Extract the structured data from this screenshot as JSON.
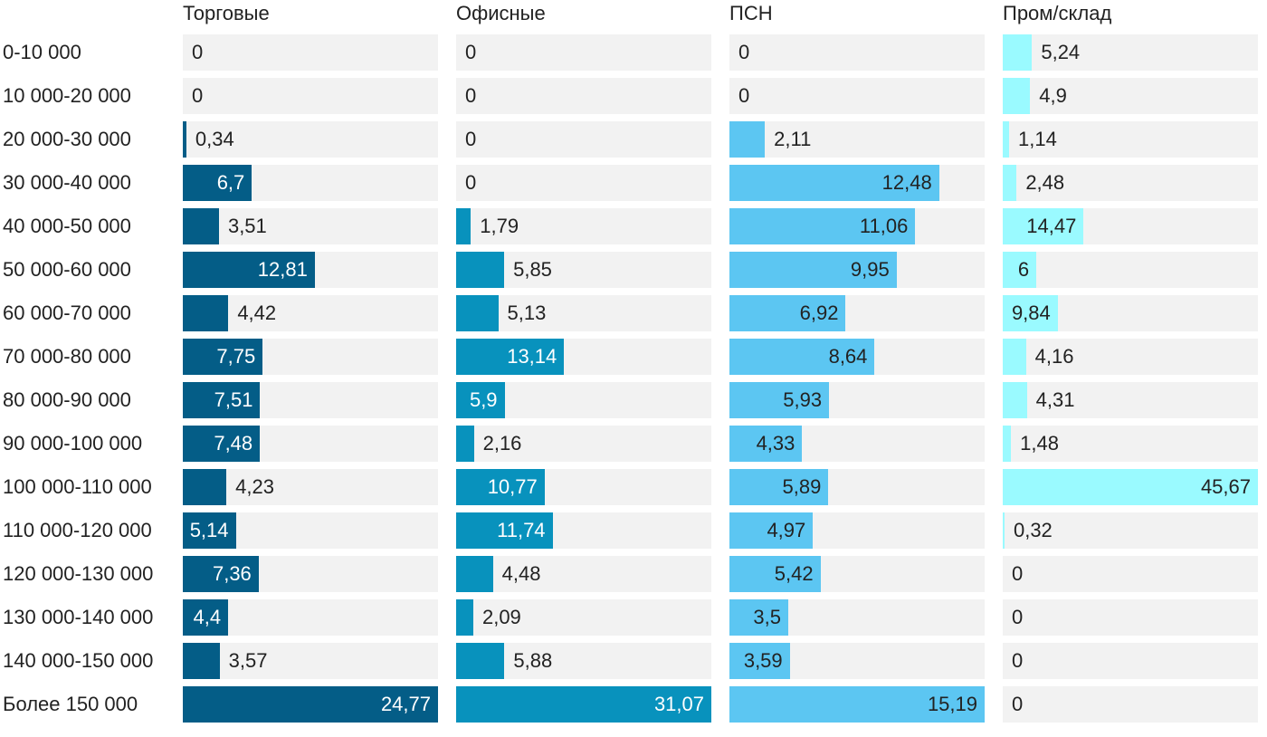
{
  "chart_data": {
    "type": "bar",
    "orientation": "horizontal",
    "layout": "small-multiples",
    "categories": [
      "0-10 000",
      "10 000-20 000",
      "20 000-30 000",
      "30 000-40 000",
      "40 000-50 000",
      "50 000-60 000",
      "60 000-70 000",
      "70 000-80 000",
      "80 000-90 000",
      "90 000-100 000",
      "100 000-110 000",
      "110 000-120 000",
      "120 000-130 000",
      "130 000-140 000",
      "140 000-150 000",
      "Более 150 000"
    ],
    "series": [
      {
        "name": "Торговые",
        "color": "#045d87",
        "values": [
          0,
          0,
          0.34,
          6.7,
          3.51,
          12.81,
          4.42,
          7.75,
          7.51,
          7.48,
          4.23,
          5.14,
          7.36,
          4.4,
          3.57,
          24.77
        ],
        "labels": [
          "0",
          "0",
          "0,34",
          "6,7",
          "3,51",
          "12,81",
          "4,42",
          "7,75",
          "7,51",
          "7,48",
          "4,23",
          "5,14",
          "7,36",
          "4,4",
          "3,57",
          "24,77"
        ]
      },
      {
        "name": "Офисные",
        "color": "#0892bd",
        "values": [
          0,
          0,
          0,
          0,
          1.79,
          5.85,
          5.13,
          13.14,
          5.9,
          2.16,
          10.77,
          11.74,
          4.48,
          2.09,
          5.88,
          31.07
        ],
        "labels": [
          "0",
          "0",
          "0",
          "0",
          "1,79",
          "5,85",
          "5,13",
          "13,14",
          "5,9",
          "2,16",
          "10,77",
          "11,74",
          "4,48",
          "2,09",
          "5,88",
          "31,07"
        ]
      },
      {
        "name": "ПСН",
        "color": "#5cc6f2",
        "values": [
          0,
          0,
          2.11,
          12.48,
          11.06,
          9.95,
          6.92,
          8.64,
          5.93,
          4.33,
          5.89,
          4.97,
          5.42,
          3.5,
          3.59,
          15.19
        ],
        "labels": [
          "0",
          "0",
          "2,11",
          "12,48",
          "11,06",
          "9,95",
          "6,92",
          "8,64",
          "5,93",
          "4,33",
          "5,89",
          "4,97",
          "5,42",
          "3,5",
          "3,59",
          "15,19"
        ]
      },
      {
        "name": "Пром/склад",
        "color": "#9afaff",
        "values": [
          5.24,
          4.9,
          1.14,
          2.48,
          14.47,
          6,
          9.84,
          4.16,
          4.31,
          1.48,
          45.67,
          0.32,
          0,
          0,
          0,
          0
        ],
        "labels": [
          "5,24",
          "4,9",
          "1,14",
          "2,48",
          "14,47",
          "6",
          "9,84",
          "4,16",
          "4,31",
          "1,48",
          "45,67",
          "0,32",
          "0",
          "0",
          "0",
          "0"
        ]
      }
    ],
    "xlabel": "",
    "ylabel": "",
    "grid": false,
    "legend": "none"
  }
}
